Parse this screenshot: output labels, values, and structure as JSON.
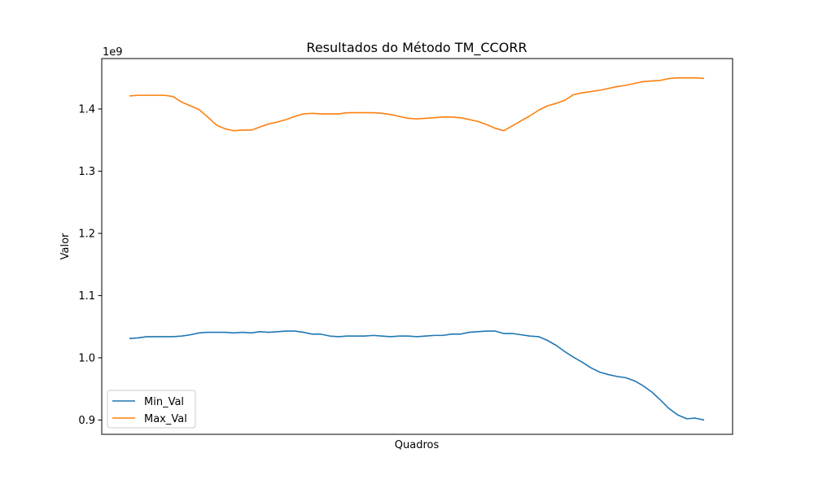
{
  "chart_data": {
    "type": "line",
    "title": "Resultados do Método TM_CCORR",
    "xlabel": "Quadros",
    "ylabel": "Valor",
    "offset_label": "1e9",
    "ylim": [
      0.877,
      1.481
    ],
    "yticks": [
      0.9,
      1.0,
      1.1,
      1.2,
      1.3,
      1.4
    ],
    "ytick_labels": [
      "0.9",
      "1.0",
      "1.1",
      "1.2",
      "1.3",
      "1.4"
    ],
    "xticks_visible": false,
    "grid": false,
    "legend": {
      "position": "lower-left"
    },
    "series": [
      {
        "name": "Min_Val",
        "color": "#1f77b4",
        "values": [
          1.031,
          1.032,
          1.034,
          1.034,
          1.034,
          1.034,
          1.035,
          1.037,
          1.04,
          1.041,
          1.041,
          1.041,
          1.04,
          1.041,
          1.04,
          1.042,
          1.041,
          1.042,
          1.043,
          1.043,
          1.041,
          1.038,
          1.038,
          1.035,
          1.034,
          1.035,
          1.035,
          1.035,
          1.036,
          1.035,
          1.034,
          1.035,
          1.035,
          1.034,
          1.035,
          1.036,
          1.036,
          1.038,
          1.038,
          1.041,
          1.042,
          1.043,
          1.043,
          1.039,
          1.039,
          1.037,
          1.035,
          1.034,
          1.028,
          1.02,
          1.01,
          1.001,
          0.993,
          0.984,
          0.977,
          0.973,
          0.97,
          0.968,
          0.963,
          0.955,
          0.945,
          0.932,
          0.918,
          0.908,
          0.902,
          0.903,
          0.9
        ]
      },
      {
        "name": "Max_Val",
        "color": "#ff7f0e",
        "values": [
          1.421,
          1.422,
          1.422,
          1.422,
          1.422,
          1.42,
          1.411,
          1.405,
          1.399,
          1.387,
          1.374,
          1.368,
          1.365,
          1.366,
          1.366,
          1.371,
          1.376,
          1.379,
          1.383,
          1.388,
          1.392,
          1.393,
          1.392,
          1.392,
          1.392,
          1.394,
          1.394,
          1.394,
          1.394,
          1.393,
          1.391,
          1.388,
          1.385,
          1.384,
          1.385,
          1.386,
          1.387,
          1.387,
          1.386,
          1.383,
          1.38,
          1.375,
          1.369,
          1.365,
          1.373,
          1.381,
          1.389,
          1.398,
          1.405,
          1.409,
          1.414,
          1.423,
          1.426,
          1.428,
          1.43,
          1.433,
          1.436,
          1.438,
          1.441,
          1.444,
          1.445,
          1.446,
          1.449,
          1.45,
          1.45,
          1.45,
          1.449
        ]
      }
    ]
  }
}
